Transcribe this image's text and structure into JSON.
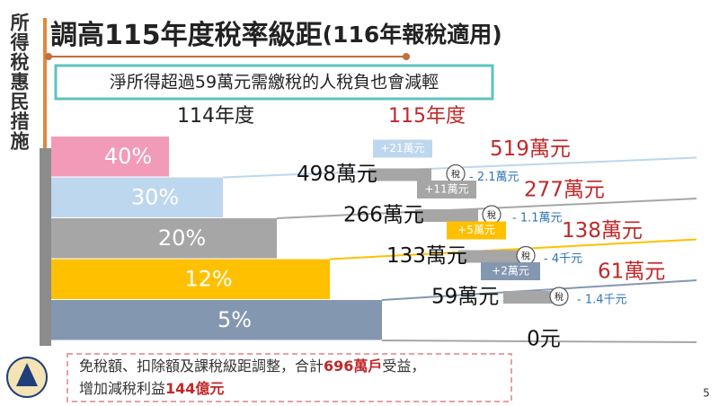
{
  "sidebar": "所得稅惠民措施",
  "title": {
    "main": "調高115年度稅率級距",
    "note": "(116年報稅適用)"
  },
  "banner": "淨所得超過59萬元需繳稅的人稅負也會減輕",
  "columns": [
    "114年度",
    "115年度"
  ],
  "rates": [
    "40%",
    "30%",
    "20%",
    "12%",
    "5%"
  ],
  "thresholds": [
    {
      "old": "498萬元",
      "increase": "+21萬元",
      "new": "519萬元",
      "saving": "- 2.1萬元"
    },
    {
      "old": "266萬元",
      "increase": "+11萬元",
      "new": "277萬元",
      "saving": "- 1.1萬元"
    },
    {
      "old": "133萬元",
      "increase": "+5萬元",
      "new": "138萬元",
      "saving": "- 4千元"
    },
    {
      "old": "59萬元",
      "increase": "+2萬元",
      "new": "61萬元",
      "saving": "- 1.4千元"
    }
  ],
  "icon_text": "稅",
  "base": "0元",
  "note": {
    "line1": [
      "免稅額、扣除額及課稅級距調整，合計",
      "696萬戶",
      "受益，"
    ],
    "line2": [
      "增加減稅利益",
      "144億元"
    ]
  },
  "page_number": "5"
}
